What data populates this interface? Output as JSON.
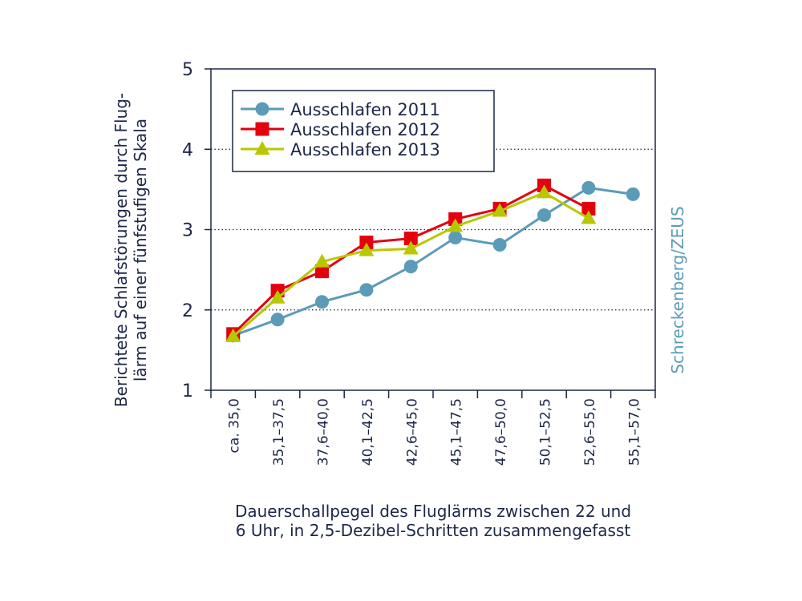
{
  "chart_data": {
    "type": "line",
    "categories": [
      "ca. 35,0",
      "35,1–37,5",
      "37,6–40,0",
      "40,1–42,5",
      "42,6–45,0",
      "45,1–47,5",
      "47,6–50,0",
      "50,1–52,5",
      "52,6–55,0",
      "55,1–57,0"
    ],
    "series": [
      {
        "name": "Ausschlafen 2011",
        "color": "#5b9bb8",
        "marker": "circle",
        "values": [
          1.68,
          1.88,
          2.1,
          2.25,
          2.54,
          2.9,
          2.81,
          3.18,
          3.52,
          3.44
        ]
      },
      {
        "name": "Ausschlafen 2012",
        "color": "#e3000f",
        "marker": "square",
        "values": [
          1.7,
          2.24,
          2.48,
          2.84,
          2.89,
          3.13,
          3.26,
          3.55,
          3.26,
          null
        ]
      },
      {
        "name": "Ausschlafen 2013",
        "color": "#b8c800",
        "marker": "triangle",
        "values": [
          1.67,
          2.15,
          2.6,
          2.74,
          2.76,
          3.04,
          3.23,
          3.46,
          3.14,
          null
        ]
      }
    ],
    "ylim": [
      1,
      5
    ],
    "yticks": [
      "1",
      "2",
      "3",
      "4",
      "5"
    ],
    "ylabel_lines": [
      "Berichtete Schlafstörungen durch Flug-",
      "lärm auf einer fünfstufigen Skala"
    ],
    "xlabel_lines": [
      "Dauerschallpegel des Fluglärms zwischen 22 und",
      "6 Uhr, in 2,5-Dezibel-Schritten zusammengefasst"
    ],
    "grid": "dotted horizontal at 2, 3, 4",
    "legend": "top-left",
    "credit": "Schreckenberg/ZEUS"
  }
}
